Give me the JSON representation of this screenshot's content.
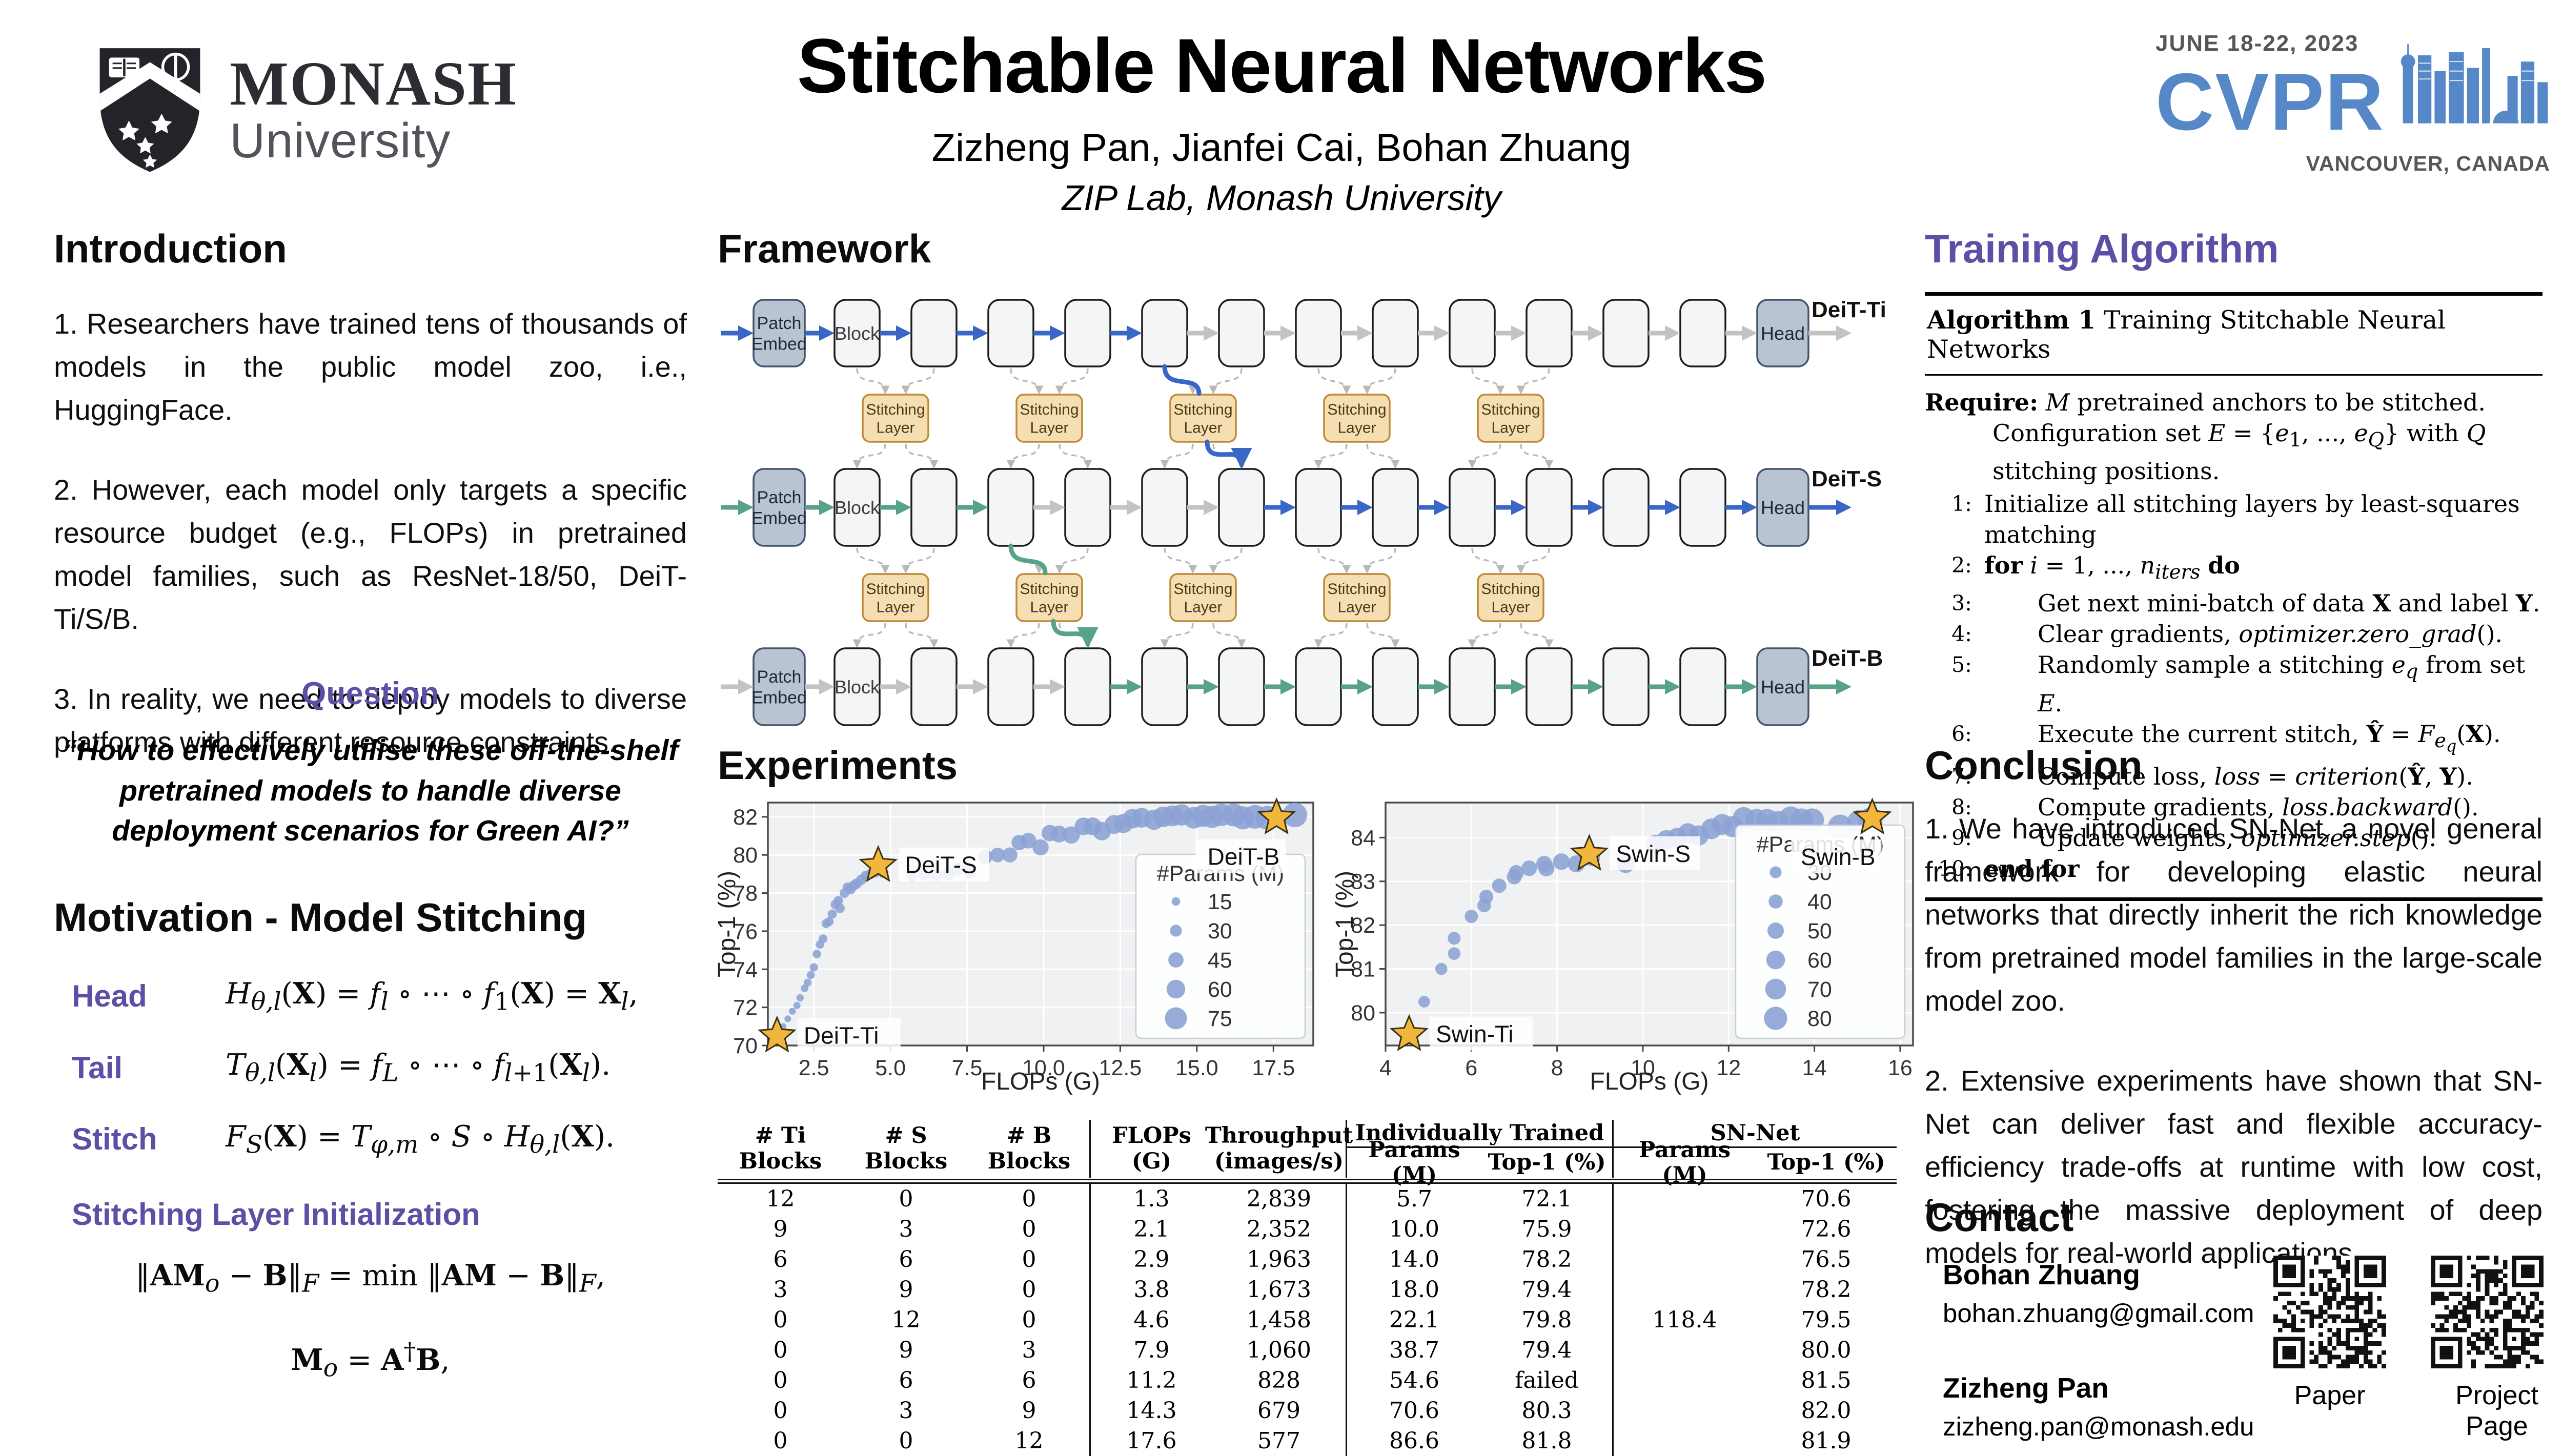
{
  "header": {
    "title": "Stitchable Neural Networks",
    "authors": "Zizheng Pan, Jianfei Cai, Bohan Zhuang",
    "affiliation": "ZIP Lab, Monash University",
    "monash": {
      "wordmark": "MONASH",
      "sub": "University"
    },
    "cvpr": {
      "dates": "JUNE 18-22, 2023",
      "acronym": "CVPR",
      "location": "VANCOUVER, CANADA"
    }
  },
  "intro": {
    "heading": "Introduction",
    "points": [
      "1. Researchers have trained tens of thousands of models in the public model zoo, i.e., HuggingFace.",
      "2. However, each model only targets a specific resource budget (e.g., FLOPs) in pretrained model families, such as ResNet-18/50, DeiT-Ti/S/B.",
      "3. In reality, we need to deploy models to diverse platforms with different resource constraints."
    ],
    "question_heading": "Question",
    "quote_lines": [
      "“How to effectively utilise these off-the-shelf",
      "pretrained models to handle diverse",
      "deployment scenarios for Green AI?”"
    ]
  },
  "motivation": {
    "heading": "Motivation - Model Stitching",
    "equations": [
      {
        "label": "Head",
        "html": "<i>H</i><sub><i>θ,l</i></sub>(<b>X</b>) = <i>f</i><sub><i>l</i></sub> ∘ ⋯ ∘ <i>f</i><sub>1</sub>(<b>X</b>) = <b>X</b><sub><i>l</i></sub>,"
      },
      {
        "label": "Tail",
        "html": "<i>T</i><sub><i>θ,l</i></sub>(<b>X</b><sub><i>l</i></sub>) = <i>f</i><sub><i>L</i></sub> ∘ ⋯ ∘ <i>f</i><sub><i>l</i>+1</sub>(<b>X</b><sub><i>l</i></sub>)."
      },
      {
        "label": "Stitch",
        "html": "<i>F</i><sub><i>S</i></sub>(<b>X</b>) = <i>T</i><sub><i>φ,m</i></sub> ∘ <i>S</i> ∘ <i>H</i><sub><i>θ,l</i></sub>(<b>X</b>)."
      }
    ],
    "init_heading": "Stitching Layer Initialization",
    "init_equations": [
      "‖<b>AM</b><sub><i>o</i></sub> − <b>B</b>‖<sub><i>F</i></sub> = min ‖<b>AM</b> − <b>B</b>‖<sub><i>F</i></sub>,",
      "<b>M</b><sub><i>o</i></sub> = <b>A</b><sup>†</sup><b>B</b>,"
    ]
  },
  "framework": {
    "heading": "Framework",
    "patch_label": [
      "Patch",
      "Embed"
    ],
    "block_label": "Block",
    "head_label": "Head",
    "stitch_label": [
      "Stitching",
      "Layer"
    ],
    "rows": [
      {
        "label": "DeiT-Ti",
        "arrow_colors": [
          "blue",
          "blue",
          "blue",
          "blue",
          "blue",
          "blue",
          "gray",
          "gray",
          "gray",
          "gray",
          "gray",
          "gray",
          "gray",
          "gray",
          "gray"
        ]
      },
      {
        "label": "DeiT-S",
        "arrow_colors": [
          "green",
          "green",
          "green",
          "green",
          "gray",
          "gray",
          "gray",
          "blue",
          "blue",
          "blue",
          "blue",
          "blue",
          "blue",
          "blue",
          "blue"
        ]
      },
      {
        "label": "DeiT-B",
        "arrow_colors": [
          "gray",
          "gray",
          "gray",
          "gray",
          "gray",
          "green",
          "green",
          "green",
          "green",
          "green",
          "green",
          "green",
          "green",
          "green",
          "green"
        ]
      }
    ],
    "stitch_paths": [
      {
        "color": "blue",
        "from_row": 0,
        "from_block": 5,
        "via_sl": 3,
        "to_block": 6
      },
      {
        "color": "green",
        "from_row": 1,
        "from_block": 3,
        "via_sl": 2,
        "to_block": 4
      }
    ],
    "palette": {
      "blue": "#3a67c6",
      "green": "#57a289",
      "gray": "#c3c3c3",
      "block_fill": "#f4f5f6",
      "block_border": "#1c1c1c",
      "embed_fill": "#b9c4d3",
      "embed_border": "#44546a",
      "stitch_fill": "#f5dfb2",
      "stitch_border": "#c08a38"
    }
  },
  "experiments": {
    "heading": "Experiments"
  },
  "chart_data": [
    {
      "id": "chart-deit",
      "type": "scatter",
      "xlabel": "FLOPs (G)",
      "ylabel": "Top-1 (%)",
      "xlim": [
        1.0,
        18.8
      ],
      "ylim": [
        70,
        82.75
      ],
      "xticks": [
        2.5,
        5.0,
        7.5,
        10.0,
        12.5,
        15.0,
        17.5
      ],
      "tick_decimals": 1,
      "yticks": [
        70,
        72,
        74,
        76,
        78,
        80,
        82
      ],
      "legend": {
        "title": "#Params (M)",
        "sizes": [
          15,
          30,
          45,
          60,
          75
        ]
      },
      "point_color": "#8ca2d4",
      "star_color": "#f2b63c",
      "anchors": [
        {
          "label": "DeiT-Ti",
          "x": 1.3,
          "y": 70.5,
          "placement": "right"
        },
        {
          "label": "DeiT-S",
          "x": 4.6,
          "y": 79.45,
          "placement": "right"
        },
        {
          "label": "DeiT-B",
          "x": 17.6,
          "y": 81.95,
          "placement": "below-left"
        }
      ],
      "points": [
        [
          1.5,
          71.0,
          6
        ],
        [
          1.65,
          71.4,
          7
        ],
        [
          1.8,
          71.8,
          8
        ],
        [
          1.95,
          72.1,
          9
        ],
        [
          2.05,
          72.5,
          10
        ],
        [
          2.2,
          73.0,
          11
        ],
        [
          2.3,
          73.3,
          12
        ],
        [
          2.4,
          73.7,
          13
        ],
        [
          2.5,
          74.1,
          14
        ],
        [
          2.6,
          74.8,
          15
        ],
        [
          2.7,
          75.3,
          15
        ],
        [
          2.8,
          75.6,
          16
        ],
        [
          2.9,
          76.4,
          17
        ],
        [
          3.0,
          76.5,
          17
        ],
        [
          3.1,
          76.9,
          18
        ],
        [
          3.2,
          77.4,
          19
        ],
        [
          3.3,
          77.6,
          19
        ],
        [
          3.35,
          77.2,
          20
        ],
        [
          3.5,
          78.0,
          20
        ],
        [
          3.6,
          78.3,
          21
        ],
        [
          3.7,
          78.2,
          22
        ],
        [
          3.8,
          78.4,
          22
        ],
        [
          3.9,
          78.5,
          23
        ],
        [
          4.05,
          78.7,
          23
        ],
        [
          4.2,
          78.9,
          24
        ],
        [
          4.35,
          79.0,
          24
        ],
        [
          4.5,
          79.1,
          25
        ],
        [
          4.75,
          79.1,
          26
        ],
        [
          5.7,
          78.9,
          28
        ],
        [
          6.1,
          79.0,
          30
        ],
        [
          6.5,
          78.95,
          32
        ],
        [
          6.9,
          79.0,
          34
        ],
        [
          7.2,
          79.25,
          36
        ],
        [
          7.6,
          79.15,
          38
        ],
        [
          8.1,
          79.9,
          40
        ],
        [
          8.5,
          80.0,
          42
        ],
        [
          8.9,
          80.0,
          44
        ],
        [
          9.2,
          80.65,
          45
        ],
        [
          9.5,
          80.75,
          47
        ],
        [
          9.9,
          80.4,
          49
        ],
        [
          10.2,
          81.15,
          50
        ],
        [
          10.5,
          81.1,
          52
        ],
        [
          10.9,
          81.05,
          54
        ],
        [
          11.3,
          81.5,
          56
        ],
        [
          11.6,
          81.5,
          57
        ],
        [
          11.9,
          81.25,
          59
        ],
        [
          12.3,
          81.6,
          61
        ],
        [
          12.6,
          81.65,
          62
        ],
        [
          12.9,
          81.9,
          64
        ],
        [
          13.2,
          81.95,
          65
        ],
        [
          13.6,
          81.85,
          67
        ],
        [
          13.9,
          82.0,
          69
        ],
        [
          14.2,
          82.05,
          70
        ],
        [
          14.5,
          82.1,
          72
        ],
        [
          14.9,
          81.95,
          73
        ],
        [
          15.2,
          82.05,
          75
        ],
        [
          15.5,
          82.0,
          76
        ],
        [
          15.8,
          82.1,
          77
        ],
        [
          16.2,
          82.1,
          79
        ],
        [
          16.5,
          81.95,
          80
        ],
        [
          16.9,
          82.0,
          82
        ],
        [
          17.3,
          81.95,
          83
        ],
        [
          18.2,
          82.1,
          86
        ]
      ]
    },
    {
      "id": "chart-swin",
      "type": "scatter",
      "xlabel": "FLOPs (G)",
      "ylabel": "Top-1 (%)",
      "xlim": [
        4.0,
        16.3
      ],
      "ylim": [
        79.25,
        84.8
      ],
      "xticks": [
        4,
        6,
        8,
        10,
        12,
        14,
        16
      ],
      "tick_decimals": 0,
      "yticks": [
        80,
        81,
        82,
        83,
        84
      ],
      "legend": {
        "title": "#Params (M)",
        "sizes": [
          30,
          40,
          50,
          60,
          70,
          80
        ]
      },
      "point_color": "#8ca2d4",
      "star_color": "#f2b63c",
      "anchors": [
        {
          "label": "Swin-Ti",
          "x": 4.55,
          "y": 79.5,
          "placement": "right"
        },
        {
          "label": "Swin-S",
          "x": 8.75,
          "y": 83.62,
          "placement": "right"
        },
        {
          "label": "Swin-B",
          "x": 15.35,
          "y": 84.45,
          "placement": "below-left"
        }
      ],
      "points": [
        [
          4.9,
          80.25,
          29
        ],
        [
          5.3,
          81.0,
          31
        ],
        [
          5.6,
          81.35,
          33
        ],
        [
          5.6,
          81.7,
          34
        ],
        [
          6.0,
          82.2,
          36
        ],
        [
          6.3,
          82.45,
          38
        ],
        [
          6.35,
          82.65,
          39
        ],
        [
          6.65,
          82.9,
          41
        ],
        [
          7.0,
          83.1,
          43
        ],
        [
          7.05,
          83.2,
          44
        ],
        [
          7.35,
          83.3,
          46
        ],
        [
          7.7,
          83.4,
          48
        ],
        [
          7.75,
          83.3,
          49
        ],
        [
          8.1,
          83.45,
          51
        ],
        [
          8.45,
          83.4,
          53
        ],
        [
          8.8,
          83.55,
          54
        ],
        [
          9.6,
          83.4,
          58
        ],
        [
          10.3,
          83.85,
          61
        ],
        [
          10.55,
          83.95,
          63
        ],
        [
          10.8,
          84.0,
          64
        ],
        [
          11.05,
          84.1,
          66
        ],
        [
          11.3,
          84.05,
          67
        ],
        [
          11.6,
          84.2,
          69
        ],
        [
          11.85,
          84.3,
          70
        ],
        [
          12.1,
          84.25,
          72
        ],
        [
          12.35,
          84.45,
          73
        ],
        [
          12.65,
          84.4,
          75
        ],
        [
          12.9,
          84.4,
          76
        ],
        [
          13.15,
          84.35,
          77
        ],
        [
          13.45,
          84.45,
          79
        ],
        [
          13.7,
          84.4,
          80
        ],
        [
          13.95,
          84.4,
          81
        ],
        [
          14.6,
          84.25,
          84
        ],
        [
          15.05,
          84.35,
          86
        ],
        [
          15.3,
          84.4,
          87
        ]
      ]
    }
  ],
  "table": {
    "simple_headers": [
      "# Ti Blocks",
      "# S Blocks",
      "# B Blocks",
      "FLOPs\n(G)",
      "Throughput\n(images/s)"
    ],
    "groups": [
      "Individually Trained",
      "SN-Net"
    ],
    "sub_headers": [
      "Params (M)",
      "Top-1 (%)",
      "Params (M)",
      "Top-1 (%)"
    ],
    "rows": [
      [
        "12",
        "0",
        "0",
        "1.3",
        "2,839",
        "5.7",
        "72.1",
        "",
        "70.6"
      ],
      [
        "9",
        "3",
        "0",
        "2.1",
        "2,352",
        "10.0",
        "75.9",
        "",
        "72.6"
      ],
      [
        "6",
        "6",
        "0",
        "2.9",
        "1,963",
        "14.0",
        "78.2",
        "",
        "76.5"
      ],
      [
        "3",
        "9",
        "0",
        "3.8",
        "1,673",
        "18.0",
        "79.4",
        "",
        "78.2"
      ],
      [
        "0",
        "12",
        "0",
        "4.6",
        "1,458",
        "22.1",
        "79.8",
        "118.4",
        "79.5"
      ],
      [
        "0",
        "9",
        "3",
        "7.9",
        "1,060",
        "38.7",
        "79.4",
        "",
        "80.0"
      ],
      [
        "0",
        "6",
        "6",
        "11.2",
        "828",
        "54.6",
        "failed",
        "",
        "81.5"
      ],
      [
        "0",
        "3",
        "9",
        "14.3",
        "679",
        "70.6",
        "80.3",
        "",
        "82.0"
      ],
      [
        "0",
        "0",
        "12",
        "17.6",
        "577",
        "86.6",
        "81.8",
        "",
        "81.9"
      ]
    ]
  },
  "algorithm": {
    "heading": "Training Algorithm",
    "caption_html": "<b>Algorithm 1</b> Training Stitchable Neural Networks",
    "require_html": "<b>Require:</b> <i>M</i> pretrained anchors to be stitched. Configuration set <i>E</i> = {<i>e</i><sub>1</sub>, ..., <i>e</i><sub><i>Q</i></sub>} with <i>Q</i> stitching positions.",
    "lines": [
      {
        "num": "1:",
        "indent": 0,
        "html": "Initialize all stitching layers by least-squares matching"
      },
      {
        "num": "2:",
        "indent": 0,
        "html": "<b>for</b> <i>i</i> = 1, ..., <i>n</i><sub><i>iters</i></sub> <b>do</b>"
      },
      {
        "num": "3:",
        "indent": 1,
        "html": "Get next mini-batch of data <b>X</b> and label <b>Y</b>."
      },
      {
        "num": "4:",
        "indent": 1,
        "html": "Clear gradients, <i>optimizer.zero_grad</i>()."
      },
      {
        "num": "5:",
        "indent": 1,
        "html": "Randomly sample a stitching <i>e</i><sub><i>q</i></sub> from set <i>E</i>."
      },
      {
        "num": "6:",
        "indent": 1,
        "html": "Execute the current stitch, <b>Ŷ</b> = <i>F</i><sub><i>e<sub>q</sub></i></sub>(<b>X</b>)."
      },
      {
        "num": "7:",
        "indent": 1,
        "html": "Compute loss, <i>loss</i> = <i>criterion</i>(<b>Ŷ</b>, <b>Y</b>)."
      },
      {
        "num": "8:",
        "indent": 1,
        "html": "Compute gradients, <i>loss.backward</i>()."
      },
      {
        "num": "9:",
        "indent": 1,
        "html": "Update weights, <i>optimizer.step</i>()."
      },
      {
        "num": "10:",
        "indent": 0,
        "html": "<b>end for</b>"
      }
    ]
  },
  "conclusion": {
    "heading": "Conclusion",
    "points": [
      "1. We have introduced SN-Net, a novel general framework for developing elastic neural networks that directly inherit the rich knowledge from pretrained model families in the large-scale model zoo.",
      "2. Extensive experiments have shown that SN-Net can deliver fast and flexible accuracy-efficiency trade-offs at runtime with low cost, fostering the massive deployment of deep models for real-world applications."
    ]
  },
  "contact": {
    "heading": "Contact",
    "people": [
      {
        "name": "Bohan Zhuang",
        "email": "bohan.zhuang@gmail.com"
      },
      {
        "name": "Zizheng Pan",
        "email": "zizheng.pan@monash.edu"
      }
    ],
    "qr_labels": [
      "Paper",
      "Project Page"
    ]
  }
}
